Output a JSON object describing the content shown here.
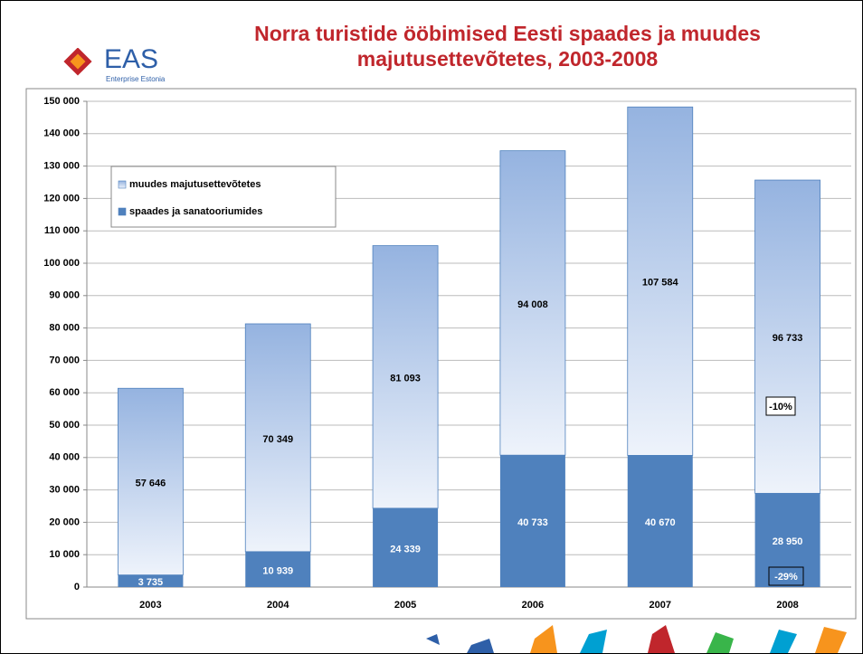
{
  "logo": {
    "name": "EAS",
    "subtitle": "Enterprise Estonia"
  },
  "chart_data": {
    "type": "stacked_bar",
    "title": "Norra turistide ööbimised Eesti spaades ja muudes majutusettevõtetes, 2003-2008",
    "categories": [
      "2003",
      "2004",
      "2005",
      "2006",
      "2007",
      "2008"
    ],
    "series": [
      {
        "name": "spaades ja sanatooriumides",
        "color": "#4f81bd",
        "values": [
          3735,
          10939,
          24339,
          40733,
          40670,
          28950
        ],
        "value_labels": [
          "3 735",
          "10 939",
          "24 339",
          "40 733",
          "40 670",
          "28 950"
        ]
      },
      {
        "name": "muudes majutusettevõtetes",
        "color": "#95b3e0",
        "values": [
          57646,
          70349,
          81093,
          94008,
          107584,
          96733
        ],
        "value_labels": [
          "57 646",
          "70 349",
          "81 093",
          "94 008",
          "107 584",
          "96 733"
        ]
      }
    ],
    "ylim": [
      0,
      150000
    ],
    "yticks": [
      0,
      {
        "value": 10000,
        "label": "10 000"
      },
      {
        "value": 20000,
        "label": "20 000"
      },
      {
        "value": 30000,
        "label": "30 000"
      },
      {
        "value": 40000,
        "label": "40 000"
      },
      {
        "value": 50000,
        "label": "50 000"
      },
      {
        "value": 60000,
        "label": "60 000"
      },
      {
        "value": 70000,
        "label": "70 000"
      },
      {
        "value": 80000,
        "label": "80 000"
      },
      {
        "value": 90000,
        "label": "90 000"
      },
      {
        "value": 100000,
        "label": "100 000"
      },
      {
        "value": 110000,
        "label": "110 000"
      },
      {
        "value": 120000,
        "label": "120 000"
      },
      {
        "value": 130000,
        "label": "130 000"
      },
      {
        "value": 140000,
        "label": "140 000"
      },
      {
        "value": 150000,
        "label": "150 000"
      }
    ],
    "grid": true,
    "annotations": [
      "-10%",
      "-29%"
    ]
  }
}
